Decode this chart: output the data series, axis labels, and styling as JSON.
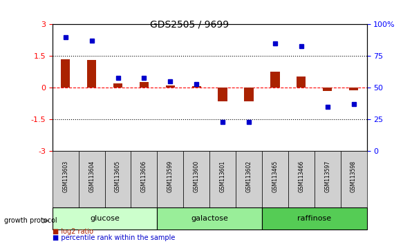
{
  "title": "GDS2505 / 9699",
  "samples": [
    "GSM113603",
    "GSM113604",
    "GSM113605",
    "GSM113606",
    "GSM113599",
    "GSM113600",
    "GSM113601",
    "GSM113602",
    "GSM113465",
    "GSM113466",
    "GSM113597",
    "GSM113598"
  ],
  "log2_ratio": [
    1.35,
    1.32,
    0.22,
    0.27,
    0.12,
    0.09,
    -0.65,
    -0.65,
    0.75,
    0.55,
    -0.15,
    -0.12
  ],
  "percentile_rank": [
    90,
    87,
    58,
    58,
    55,
    53,
    23,
    23,
    85,
    83,
    35,
    37
  ],
  "groups": [
    {
      "label": "glucose",
      "start": 0,
      "end": 4,
      "color": "#ccffcc"
    },
    {
      "label": "galactose",
      "start": 4,
      "end": 8,
      "color": "#99ee99"
    },
    {
      "label": "raffinose",
      "start": 8,
      "end": 12,
      "color": "#55cc55"
    }
  ],
  "bar_color": "#aa2200",
  "dot_color": "#0000cc",
  "ylim_left": [
    -3,
    3
  ],
  "yticks_left": [
    -3,
    -1.5,
    0,
    1.5,
    3
  ],
  "yticks_right": [
    0,
    25,
    50,
    75,
    100
  ],
  "hline_positions": [
    1.5,
    0,
    -1.5
  ],
  "background": "#ffffff"
}
